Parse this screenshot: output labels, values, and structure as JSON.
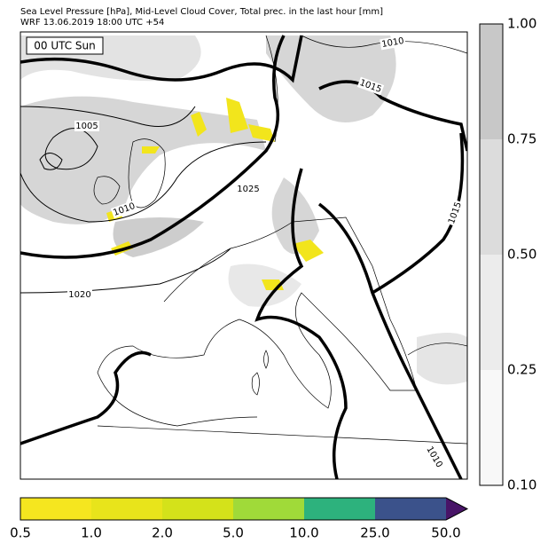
{
  "header": {
    "title": "Sea Level Pressure [hPa], Mid-Level Cloud Cover, Total prec. in the last hour [mm]",
    "subtitle": "WRF 13.06.2019 18:00 UTC +54"
  },
  "map": {
    "time_label": "00 UTC Sun",
    "isobar_labels": [
      "1010",
      "1015",
      "1005",
      "1025",
      "1010",
      "1015",
      "1020",
      "1010"
    ]
  },
  "cloud_colorbar": {
    "labels": [
      "1.00",
      "0.75",
      "0.50",
      "0.25",
      "0.10"
    ]
  },
  "precip_colorbar": {
    "labels": [
      "0.5",
      "1.0",
      "2.0",
      "5.0",
      "10.0",
      "25.0",
      "50.0"
    ]
  }
}
